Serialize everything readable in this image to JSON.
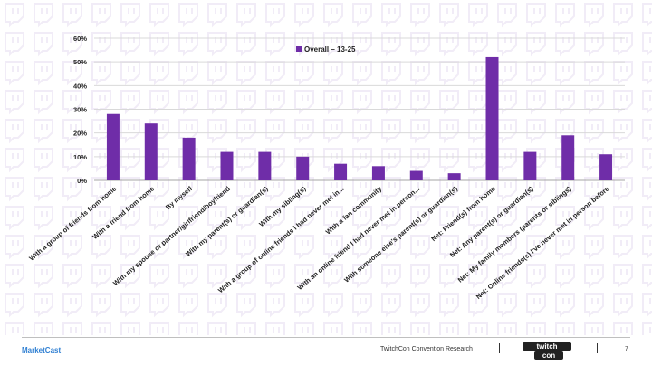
{
  "chart_data": {
    "type": "bar",
    "categories": [
      "With a group of friends from home",
      "With a friend from home",
      "By myself",
      "With my spouse or partner/girlfriend/boyfriend",
      "With my parent(s) or guardian(s)",
      "With my sibling(s)",
      "With a group of online friends I had never met in...",
      "With a fan community",
      "With an online friend I had never met in person...",
      "With someone else's parent(s) or guardian(s)",
      "Net: Friend(s) from home",
      "Net: Any parent(s) or guardian(s)",
      "Net: My family members (parents or siblings)",
      "Net: Online friends(s) I've never met in person before"
    ],
    "series": [
      {
        "name": "Overall – 13-25",
        "values": [
          28,
          24,
          18,
          12,
          12,
          10,
          7,
          6,
          4,
          3,
          52,
          12,
          19,
          11
        ]
      }
    ],
    "ylim": [
      0,
      60
    ],
    "yticks": [
      "0%",
      "10%",
      "20%",
      "30%",
      "40%",
      "50%",
      "60%"
    ],
    "grid": true,
    "legend_position": "top-center",
    "bar_color": "#6f2da8"
  },
  "footer": {
    "brand": "MarketCast",
    "research": "TwitchCon Convention Research",
    "logo_text": "twitch con",
    "page_number": "7"
  }
}
